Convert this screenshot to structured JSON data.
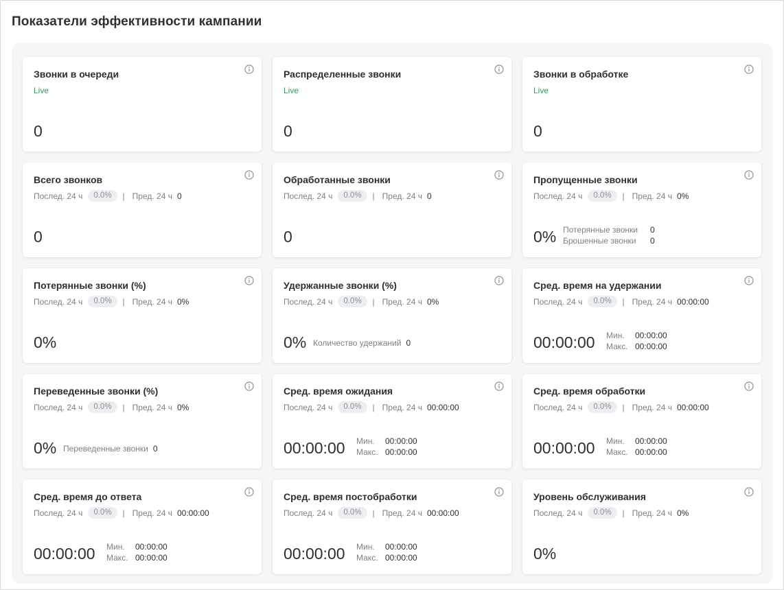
{
  "page_title": "Показатели эффективности кампании",
  "labels": {
    "live": "Live",
    "last24": "Послед. 24 ч",
    "prev24": "Пред. 24 ч",
    "separator": "|",
    "min": "Мин.",
    "max": "Макс."
  },
  "cards": [
    {
      "title": "Звонки в очереди",
      "value": "0"
    },
    {
      "title": "Распределенные звонки",
      "value": "0"
    },
    {
      "title": "Звонки в обработке",
      "value": "0"
    },
    {
      "title": "Всего звонков",
      "pct": "0.0%",
      "prev": "0",
      "value": "0"
    },
    {
      "title": "Обработанные звонки",
      "pct": "0.0%",
      "prev": "0",
      "value": "0"
    },
    {
      "title": "Пропущенные звонки",
      "pct": "0.0%",
      "prev": "0%",
      "value": "0%",
      "extra": [
        {
          "label": "Потерянные звонки",
          "value": "0"
        },
        {
          "label": "Брошенные звонки",
          "value": "0"
        }
      ]
    },
    {
      "title": "Потерянные звонки (%)",
      "pct": "0.0%",
      "prev": "0%",
      "value": "0%"
    },
    {
      "title": "Удержанные звонки (%)",
      "pct": "0.0%",
      "prev": "0%",
      "value": "0%",
      "side_label": "Количество удержаний",
      "side_value": "0"
    },
    {
      "title": "Сред. время на удержании",
      "pct": "0.0%",
      "prev": "00:00:00",
      "value": "00:00:00",
      "min": "00:00:00",
      "max": "00:00:00"
    },
    {
      "title": "Переведенные звонки (%)",
      "pct": "0.0%",
      "prev": "0%",
      "value": "0%",
      "side_label": "Переведенные звонки",
      "side_value": "0"
    },
    {
      "title": "Сред. время ожидания",
      "pct": "0.0%",
      "prev": "00:00:00",
      "value": "00:00:00",
      "min": "00:00:00",
      "max": "00:00:00"
    },
    {
      "title": "Сред. время обработки",
      "pct": "0.0%",
      "prev": "00:00:00",
      "value": "00:00:00",
      "min": "00:00:00",
      "max": "00:00:00"
    },
    {
      "title": "Сред. время до ответа",
      "pct": "0.0%",
      "prev": "00:00:00",
      "value": "00:00:00",
      "min": "00:00:00",
      "max": "00:00:00"
    },
    {
      "title": "Сред. время постобработки",
      "pct": "0.0%",
      "prev": "00:00:00",
      "value": "00:00:00",
      "min": "00:00:00",
      "max": "00:00:00"
    },
    {
      "title": "Уровень обслуживания",
      "pct": "0.0%",
      "prev": "0%",
      "value": "0%"
    }
  ],
  "colors": {
    "live": "#2e9e5b",
    "panel_bg": "#f4f6f8",
    "muted_text": "#7a8189",
    "info_icon": "#8a9098"
  },
  "icons": {
    "info": "info-circle-icon"
  }
}
